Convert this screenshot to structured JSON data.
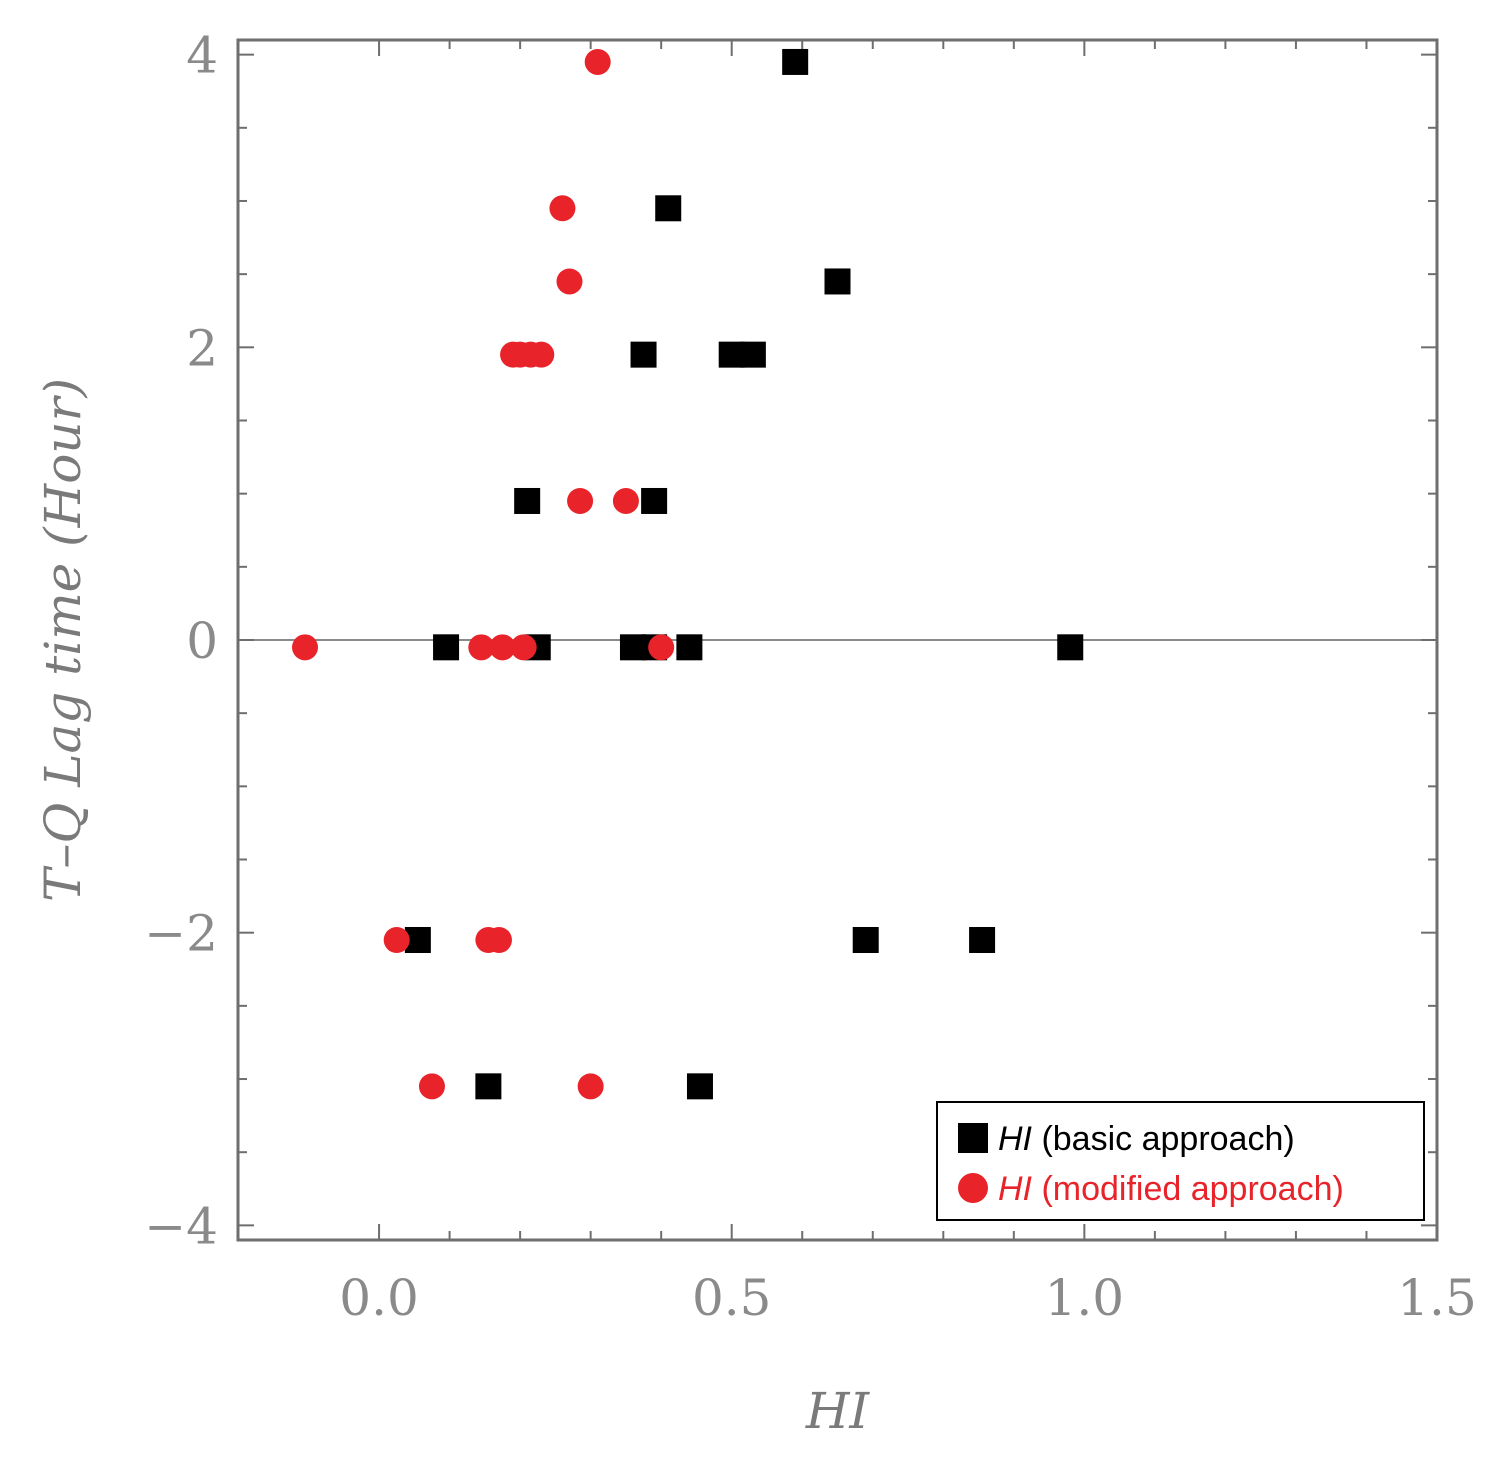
{
  "chart_data": {
    "type": "scatter",
    "title": "",
    "xlabel": "HI",
    "ylabel": "T–Q Lag time (Hour)",
    "xlim": [
      -0.2,
      1.5
    ],
    "ylim": [
      -4.1,
      4.1
    ],
    "x_ticks": [
      {
        "value": 0.0,
        "label": "0.0"
      },
      {
        "value": 0.5,
        "label": "0.5"
      },
      {
        "value": 1.0,
        "label": "1.0"
      },
      {
        "value": 1.5,
        "label": "1.5"
      }
    ],
    "y_ticks": [
      {
        "value": 4,
        "label": "4"
      },
      {
        "value": 2,
        "label": "2"
      },
      {
        "value": 0,
        "label": "0"
      },
      {
        "value": -2,
        "label": "−2"
      },
      {
        "value": -4,
        "label": "−4"
      }
    ],
    "grid": false,
    "zero_line": true,
    "legend_position": "bottom-right",
    "series": [
      {
        "name": "basic",
        "legend_italic": "HI",
        "legend_rest": " (basic approach)",
        "marker": "square",
        "color": "#000000",
        "text_color": "#000000",
        "points": [
          {
            "x": 0.59,
            "y": 3.95
          },
          {
            "x": 0.41,
            "y": 2.95
          },
          {
            "x": 0.65,
            "y": 2.45
          },
          {
            "x": 0.375,
            "y": 1.95
          },
          {
            "x": 0.5,
            "y": 1.95
          },
          {
            "x": 0.53,
            "y": 1.95
          },
          {
            "x": 0.21,
            "y": 0.95
          },
          {
            "x": 0.39,
            "y": 0.95
          },
          {
            "x": 0.095,
            "y": -0.05
          },
          {
            "x": 0.225,
            "y": -0.05
          },
          {
            "x": 0.36,
            "y": -0.05
          },
          {
            "x": 0.39,
            "y": -0.05
          },
          {
            "x": 0.44,
            "y": -0.05
          },
          {
            "x": 0.98,
            "y": -0.05
          },
          {
            "x": 0.055,
            "y": -2.05
          },
          {
            "x": 0.69,
            "y": -2.05
          },
          {
            "x": 0.855,
            "y": -2.05
          },
          {
            "x": 0.155,
            "y": -3.05
          },
          {
            "x": 0.455,
            "y": -3.05
          }
        ]
      },
      {
        "name": "modified",
        "legend_italic": "HI",
        "legend_rest": " (modified approach)",
        "marker": "circle",
        "color": "#e8232a",
        "text_color": "#e8232a",
        "points": [
          {
            "x": 0.31,
            "y": 3.95
          },
          {
            "x": 0.26,
            "y": 2.95
          },
          {
            "x": 0.27,
            "y": 2.45
          },
          {
            "x": 0.19,
            "y": 1.95
          },
          {
            "x": 0.2,
            "y": 1.95
          },
          {
            "x": 0.215,
            "y": 1.95
          },
          {
            "x": 0.23,
            "y": 1.95
          },
          {
            "x": 0.285,
            "y": 0.95
          },
          {
            "x": 0.35,
            "y": 0.95
          },
          {
            "x": -0.105,
            "y": -0.05
          },
          {
            "x": 0.145,
            "y": -0.05
          },
          {
            "x": 0.175,
            "y": -0.05
          },
          {
            "x": 0.205,
            "y": -0.05
          },
          {
            "x": 0.4,
            "y": -0.05
          },
          {
            "x": 0.025,
            "y": -2.05
          },
          {
            "x": 0.155,
            "y": -2.05
          },
          {
            "x": 0.17,
            "y": -2.05
          },
          {
            "x": 0.075,
            "y": -3.05
          },
          {
            "x": 0.3,
            "y": -3.05
          }
        ]
      }
    ]
  }
}
